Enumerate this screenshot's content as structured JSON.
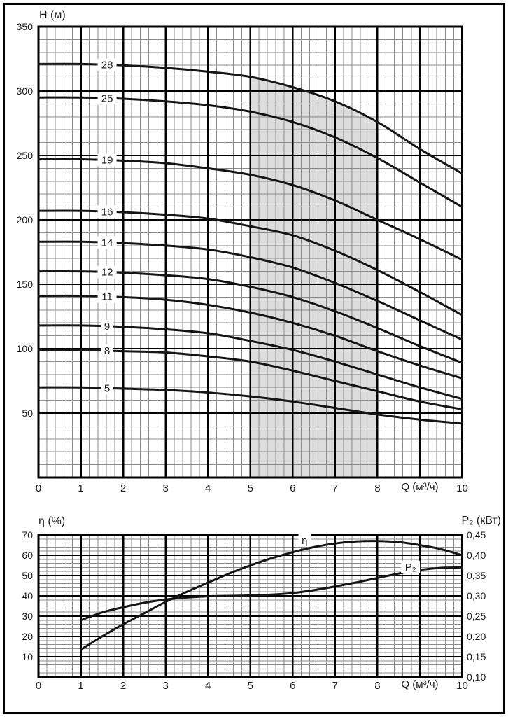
{
  "frame": {
    "border_color": "#000000",
    "background": "#ffffff"
  },
  "labels": {
    "top_y_title": "H (м)",
    "top_x_title": "Q (м³/ч)",
    "bottom_left_title": "η (%)",
    "bottom_right_title": "P₂ (кВт)",
    "bottom_x_title": "Q (м³/ч)"
  },
  "colors": {
    "curve": "#151515",
    "major_grid": "#000000",
    "minor_grid": "#8b8b8b",
    "shaded_band": "#dcdcdc",
    "text": "#1d1d1d"
  },
  "chart_data": [
    {
      "id": "head-flow-chart",
      "type": "line",
      "ylabel": "H (м)",
      "xlabel": "Q (м³/ч)",
      "xlim": [
        0,
        10
      ],
      "ylim": [
        0,
        350
      ],
      "x_major_step": 1,
      "x_minor_step": 0.2,
      "y_major_step": 50,
      "y_minor_step": 10,
      "grid": "on",
      "x_tick_values": [
        0,
        1,
        2,
        3,
        4,
        5,
        6,
        7,
        8,
        10
      ],
      "x_tick_labels": [
        "0",
        "1",
        "2",
        "3",
        "4",
        "5",
        "6",
        "7",
        "8",
        "10"
      ],
      "xlabel_position_q": 9,
      "y_tick_values": [
        50,
        100,
        150,
        200,
        250,
        300,
        350
      ],
      "shaded_band": {
        "q_from": 5,
        "q_to": 8,
        "top_boundary_series": "28",
        "bottom": "x-axis"
      },
      "x": [
        0,
        1,
        2,
        3,
        4,
        5,
        6,
        7,
        8,
        9,
        10
      ],
      "series": [
        {
          "name": "28",
          "values": [
            321,
            321,
            320,
            318,
            315,
            311,
            303,
            292,
            276,
            255,
            236
          ]
        },
        {
          "name": "25",
          "values": [
            295,
            295,
            294,
            292,
            289,
            284,
            276,
            264,
            248,
            229,
            210
          ]
        },
        {
          "name": "19",
          "values": [
            247,
            247,
            246,
            244,
            240,
            235,
            227,
            215,
            200,
            185,
            169
          ]
        },
        {
          "name": "16",
          "values": [
            207,
            207,
            206,
            204,
            201,
            195,
            188,
            176,
            161,
            144,
            126
          ]
        },
        {
          "name": "14",
          "values": [
            183,
            183,
            182,
            180,
            177,
            171,
            163,
            151,
            137,
            122,
            107
          ]
        },
        {
          "name": "12",
          "values": [
            160,
            160,
            159,
            157,
            154,
            148,
            140,
            129,
            116,
            102,
            89
          ]
        },
        {
          "name": "11",
          "values": [
            141,
            141,
            140,
            138,
            134,
            128,
            120,
            110,
            98,
            87,
            77
          ]
        },
        {
          "name": "9",
          "values": [
            118,
            118,
            117,
            115,
            112,
            106,
            99,
            90,
            80,
            70,
            61
          ]
        },
        {
          "name": "8",
          "values": [
            99,
            99,
            98,
            97,
            94,
            90,
            83,
            75,
            67,
            59,
            53
          ]
        },
        {
          "name": "5",
          "values": [
            70,
            70,
            69,
            68,
            66,
            63,
            59,
            54,
            49,
            45,
            42
          ]
        }
      ],
      "series_label_q": 1.62
    },
    {
      "id": "efficiency-power-chart",
      "type": "line",
      "ylabel_left": "η (%)",
      "ylabel_right": "P₂ (кВт)",
      "xlabel": "Q (м³/ч)",
      "xlim": [
        0,
        10
      ],
      "ylim_left": [
        0,
        70
      ],
      "ylim_right": [
        0.1,
        0.45
      ],
      "x_major_step": 1,
      "x_minor_step": 0.2,
      "y_major_step_left": 10,
      "y_minor_step_left": 2,
      "grid": "on",
      "x_tick_values": [
        0,
        1,
        2,
        3,
        4,
        5,
        6,
        7,
        8,
        10
      ],
      "x_tick_labels": [
        "0",
        "1",
        "2",
        "3",
        "4",
        "5",
        "6",
        "7",
        "8",
        "10"
      ],
      "xlabel_position_q": 9,
      "y_tick_values_left": [
        10,
        20,
        30,
        40,
        50,
        60,
        70
      ],
      "y_tick_labels_right": [
        "0,45",
        "0,40",
        "0,35",
        "0,30",
        "0,25",
        "0,20",
        "0,15",
        "0,10"
      ],
      "series": [
        {
          "name": "η",
          "axis": "left",
          "points": [
            [
              1,
              13.5
            ],
            [
              1.5,
              20
            ],
            [
              2,
              26
            ],
            [
              2.5,
              31.5
            ],
            [
              3,
              37
            ],
            [
              3.5,
              42
            ],
            [
              4,
              46.5
            ],
            [
              4.5,
              51
            ],
            [
              5,
              55
            ],
            [
              5.5,
              58.5
            ],
            [
              6,
              61.5
            ],
            [
              6.5,
              64
            ],
            [
              7,
              65.8
            ],
            [
              7.5,
              66.8
            ],
            [
              8,
              67
            ],
            [
              8.5,
              66.5
            ],
            [
              9,
              65
            ],
            [
              9.5,
              63
            ],
            [
              10,
              60
            ]
          ],
          "label_pos": {
            "q": 6.28,
            "val": 67.3
          }
        },
        {
          "name": "P₂",
          "axis": "right",
          "points": [
            [
              1,
              0.24
            ],
            [
              1.5,
              0.259
            ],
            [
              2,
              0.272
            ],
            [
              2.5,
              0.283
            ],
            [
              3,
              0.291
            ],
            [
              3.5,
              0.296
            ],
            [
              4,
              0.299
            ],
            [
              4.5,
              0.3
            ],
            [
              5,
              0.301
            ],
            [
              5.5,
              0.303
            ],
            [
              6,
              0.307
            ],
            [
              6.5,
              0.314
            ],
            [
              7,
              0.323
            ],
            [
              7.5,
              0.333
            ],
            [
              8,
              0.344
            ],
            [
              8.5,
              0.355
            ],
            [
              9,
              0.364
            ],
            [
              9.5,
              0.369
            ],
            [
              10,
              0.37
            ]
          ],
          "label_pos": {
            "q": 8.78,
            "val": 0.371
          }
        }
      ]
    }
  ]
}
